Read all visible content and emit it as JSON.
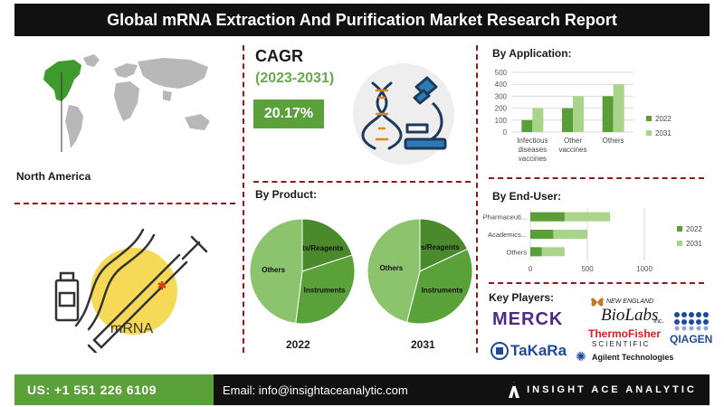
{
  "report_title": "Global mRNA Extraction And Purification Market  Research Report",
  "region": {
    "label": "North America"
  },
  "cagr": {
    "title": "CAGR",
    "period": "(2023-2031)",
    "value": "20.17%"
  },
  "illustration": {
    "syringe_text": "mRNA"
  },
  "sections": {
    "by_product": "By Product:",
    "by_application": "By Application:",
    "by_end_user": "By End-User:",
    "key_players": "Key Players:"
  },
  "chart_data": [
    {
      "type": "bar",
      "title": "By Application:",
      "categories": [
        "Infectious diseases vaccines",
        "Other vaccines",
        "Others"
      ],
      "series": [
        {
          "name": "2022",
          "values": [
            100,
            200,
            300
          ]
        },
        {
          "name": "2031",
          "values": [
            200,
            300,
            400
          ]
        }
      ],
      "ylim": [
        0,
        500
      ],
      "yticks": [
        "0",
        "100",
        "200",
        "300",
        "400",
        "500"
      ],
      "grid": true,
      "legend": "right",
      "colors": [
        "#5a9e3a",
        "#a8d58a"
      ]
    },
    {
      "type": "bar",
      "orientation": "horizontal",
      "title": "By End-User:",
      "categories": [
        "Pharmaceuti...",
        "Academics...",
        "Others"
      ],
      "series": [
        {
          "name": "2022",
          "values": [
            300,
            200,
            100
          ]
        },
        {
          "name": "2031",
          "values": [
            700,
            500,
            300
          ]
        }
      ],
      "xlim": [
        0,
        1000
      ],
      "xticks": [
        "0",
        "500",
        "1000"
      ],
      "grid": true,
      "legend": "right",
      "colors": [
        "#5a9e3a",
        "#a8d58a"
      ]
    },
    {
      "type": "pie",
      "title": "2022",
      "slices": [
        {
          "label": "Kits/Reagents",
          "value": 20,
          "color": "#4a8a2c"
        },
        {
          "label": "Instruments",
          "value": 32,
          "color": "#5aa13a"
        },
        {
          "label": "Others",
          "value": 48,
          "color": "#8cc46e"
        }
      ]
    },
    {
      "type": "pie",
      "title": "2031",
      "slices": [
        {
          "label": "Kits/Reagents",
          "value": 18,
          "color": "#4a8a2c"
        },
        {
          "label": "Instruments",
          "value": 36,
          "color": "#5aa13a"
        },
        {
          "label": "Others",
          "value": 46,
          "color": "#8cc46e"
        }
      ]
    }
  ],
  "players": {
    "merck": "MERCK",
    "neb_top": "NEW ENGLAND",
    "neb": "BioLabs",
    "neb_inc": "Inc.",
    "thermo_top": "ThermoFisher",
    "thermo_bottom": "SCIENTIFIC",
    "qiagen": "QIAGEN",
    "takara": "TaKaRa",
    "agilent": "Agilent Technologies"
  },
  "footer": {
    "phone": "US: +1 551 226 6109",
    "email": "Email: info@insightaceanalytic.com",
    "brand": "INSIGHT ACE ANALYTIC"
  },
  "colors": {
    "accent": "#5aa13a",
    "dark": "#111111",
    "divider": "#8b1a1a"
  }
}
